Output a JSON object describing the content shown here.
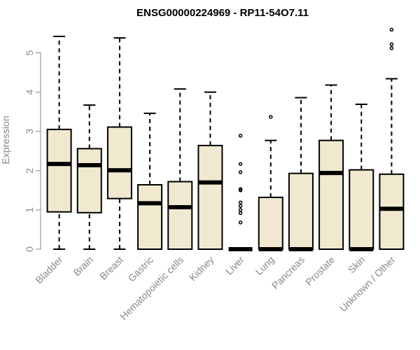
{
  "chart_data": {
    "type": "boxplot",
    "title": "ENSG00000224969 - RP11-54O7.11",
    "xlabel": "",
    "ylabel": "Expression",
    "ylim": [
      0,
      5.8
    ],
    "yticks": [
      0,
      1,
      2,
      3,
      4,
      5
    ],
    "box_fill": "#f0e9cf",
    "box_stroke": "#000000",
    "axis_color": "#888888",
    "categories": [
      "Bladder",
      "Brain",
      "Breast",
      "Gastric",
      "Hematopoietic cells",
      "Kidney",
      "Liver",
      "Lung",
      "Pancreas",
      "Prostate",
      "Skin",
      "Unknown / Other"
    ],
    "boxes": [
      {
        "whisker_low": 0,
        "q1": 0.95,
        "median": 2.17,
        "q3": 3.05,
        "whisker_high": 5.42,
        "outliers": []
      },
      {
        "whisker_low": 0,
        "q1": 0.93,
        "median": 2.14,
        "q3": 2.56,
        "whisker_high": 3.67,
        "outliers": []
      },
      {
        "whisker_low": 0,
        "q1": 1.29,
        "median": 2.01,
        "q3": 3.11,
        "whisker_high": 5.38,
        "outliers": []
      },
      {
        "whisker_low": 0,
        "q1": 0,
        "median": 1.17,
        "q3": 1.64,
        "whisker_high": 3.46,
        "outliers": []
      },
      {
        "whisker_low": 0,
        "q1": 0,
        "median": 1.07,
        "q3": 1.72,
        "whisker_high": 4.08,
        "outliers": []
      },
      {
        "whisker_low": 0,
        "q1": 0,
        "median": 1.7,
        "q3": 2.64,
        "whisker_high": 4.0,
        "outliers": []
      },
      {
        "whisker_low": 0,
        "q1": 0,
        "median": 0,
        "q3": 0,
        "whisker_high": 0,
        "outliers": [
          2.89,
          2.17,
          1.96,
          1.53,
          1.5,
          1.19,
          1.1,
          1.0,
          0.92,
          0.68
        ]
      },
      {
        "whisker_low": 0,
        "q1": 0,
        "median": 0,
        "q3": 1.32,
        "whisker_high": 2.77,
        "outliers": [
          3.37
        ]
      },
      {
        "whisker_low": 0,
        "q1": 0,
        "median": 0,
        "q3": 1.93,
        "whisker_high": 3.86,
        "outliers": []
      },
      {
        "whisker_low": 0,
        "q1": 0,
        "median": 1.94,
        "q3": 2.77,
        "whisker_high": 4.18,
        "outliers": []
      },
      {
        "whisker_low": 0,
        "q1": 0,
        "median": 0,
        "q3": 2.02,
        "whisker_high": 3.69,
        "outliers": []
      },
      {
        "whisker_low": 0,
        "q1": 0,
        "median": 1.03,
        "q3": 1.91,
        "whisker_high": 4.34,
        "outliers": [
          5.59,
          5.22,
          5.12
        ]
      }
    ]
  }
}
